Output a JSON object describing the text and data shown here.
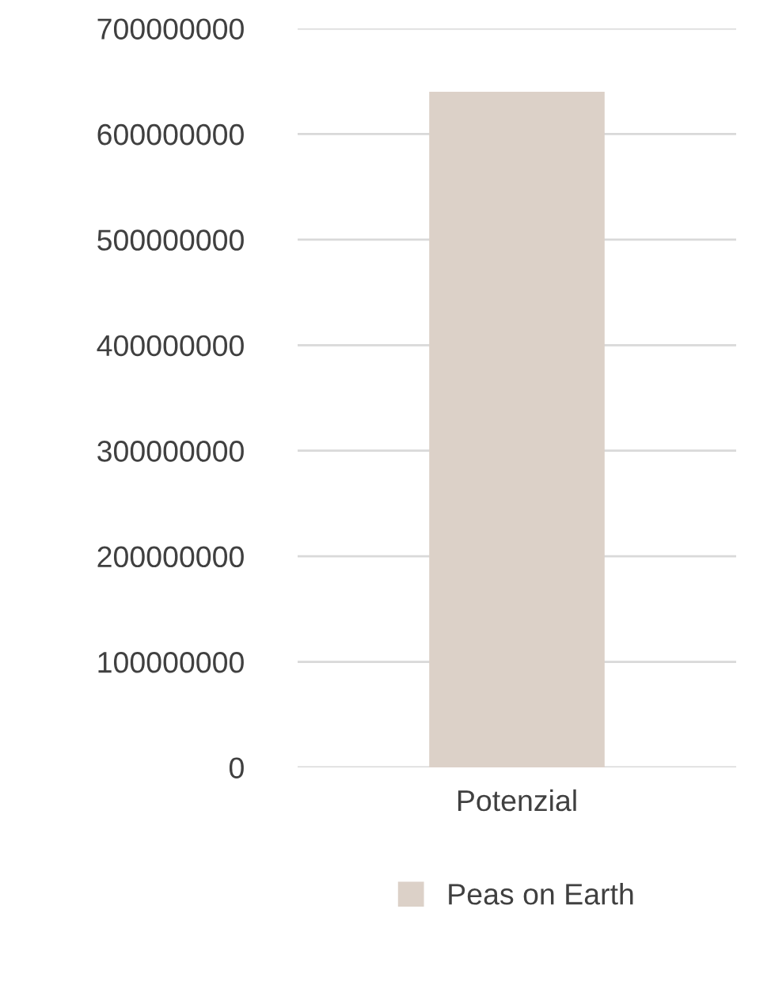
{
  "chart_data": {
    "type": "bar",
    "categories": [
      "Potenzial"
    ],
    "series": [
      {
        "name": "Peas on Earth",
        "color": "#dcd1c8",
        "values": [
          640000000
        ]
      }
    ],
    "ylim": [
      0,
      700000000
    ],
    "yticks": [
      0,
      100000000,
      200000000,
      300000000,
      400000000,
      500000000,
      600000000,
      700000000
    ],
    "grid": "y",
    "legend": "bottom"
  }
}
